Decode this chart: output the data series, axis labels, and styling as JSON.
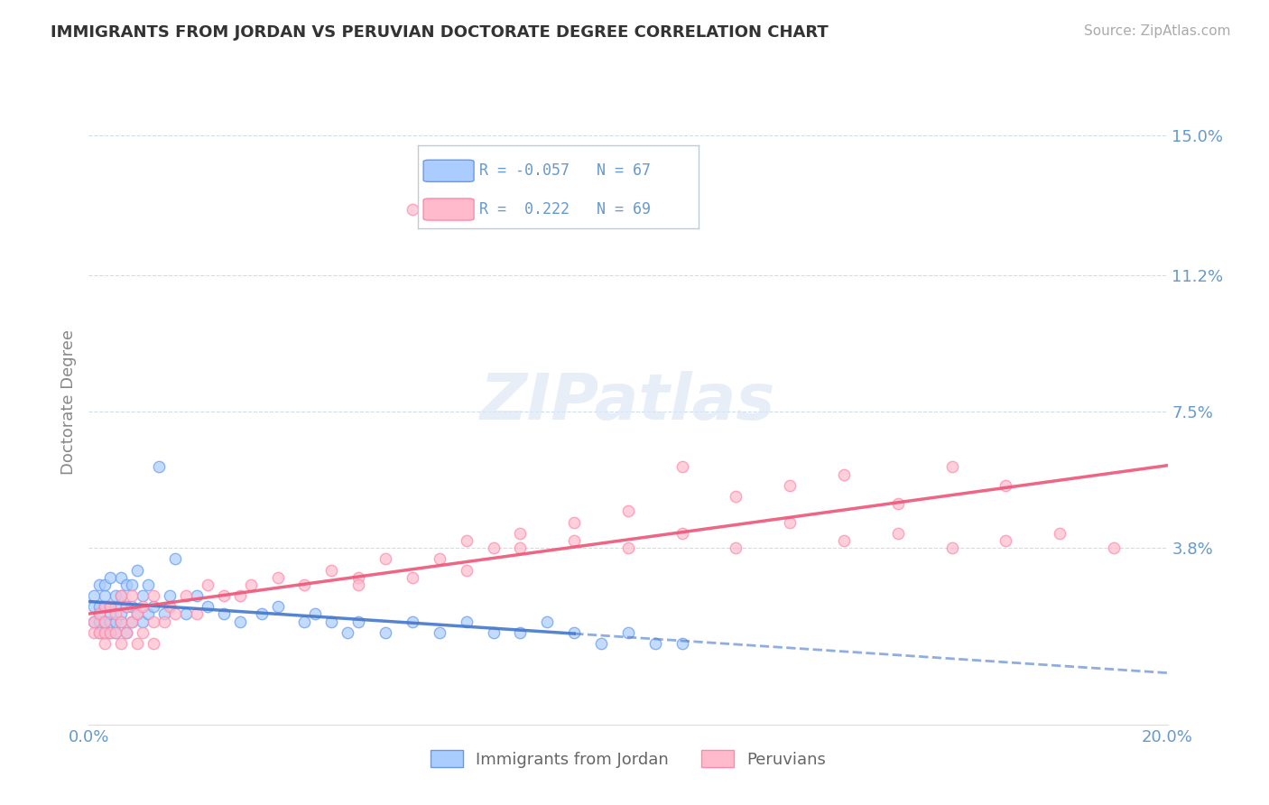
{
  "title": "IMMIGRANTS FROM JORDAN VS PERUVIAN DOCTORATE DEGREE CORRELATION CHART",
  "source_text": "Source: ZipAtlas.com",
  "ylabel": "Doctorate Degree",
  "legend_labels": [
    "Immigrants from Jordan",
    "Peruvians"
  ],
  "legend_R": [
    -0.057,
    0.222
  ],
  "legend_N": [
    67,
    69
  ],
  "blue_fill": "#aaccff",
  "blue_edge": "#6699ee",
  "pink_fill": "#ffbbcc",
  "pink_edge": "#ff88aa",
  "blue_line_color": "#4477cc",
  "pink_line_color": "#ee5577",
  "title_color": "#333333",
  "axis_label_color": "#6699cc",
  "ytick_labels": [
    "15.0%",
    "11.2%",
    "7.5%",
    "3.8%"
  ],
  "ytick_values": [
    0.15,
    0.112,
    0.075,
    0.038
  ],
  "xtick_labels": [
    "0.0%",
    "20.0%"
  ],
  "xlim": [
    0.0,
    0.2
  ],
  "ylim": [
    -0.01,
    0.165
  ],
  "watermark": "ZIPatlas",
  "blue_scatter_x": [
    0.001,
    0.001,
    0.001,
    0.002,
    0.002,
    0.002,
    0.002,
    0.002,
    0.003,
    0.003,
    0.003,
    0.003,
    0.003,
    0.004,
    0.004,
    0.004,
    0.004,
    0.004,
    0.005,
    0.005,
    0.005,
    0.005,
    0.006,
    0.006,
    0.006,
    0.006,
    0.007,
    0.007,
    0.007,
    0.008,
    0.008,
    0.008,
    0.009,
    0.009,
    0.01,
    0.01,
    0.011,
    0.011,
    0.012,
    0.013,
    0.014,
    0.015,
    0.016,
    0.018,
    0.02,
    0.022,
    0.025,
    0.028,
    0.032,
    0.035,
    0.04,
    0.042,
    0.045,
    0.048,
    0.05,
    0.055,
    0.06,
    0.065,
    0.07,
    0.075,
    0.08,
    0.085,
    0.09,
    0.095,
    0.1,
    0.105,
    0.11
  ],
  "blue_scatter_y": [
    0.018,
    0.022,
    0.025,
    0.015,
    0.018,
    0.02,
    0.022,
    0.028,
    0.015,
    0.018,
    0.022,
    0.025,
    0.028,
    0.015,
    0.018,
    0.02,
    0.022,
    0.03,
    0.015,
    0.018,
    0.022,
    0.025,
    0.018,
    0.02,
    0.025,
    0.03,
    0.015,
    0.022,
    0.028,
    0.018,
    0.022,
    0.028,
    0.02,
    0.032,
    0.018,
    0.025,
    0.02,
    0.028,
    0.022,
    0.06,
    0.02,
    0.025,
    0.035,
    0.02,
    0.025,
    0.022,
    0.02,
    0.018,
    0.02,
    0.022,
    0.018,
    0.02,
    0.018,
    0.015,
    0.018,
    0.015,
    0.018,
    0.015,
    0.018,
    0.015,
    0.015,
    0.018,
    0.015,
    0.012,
    0.015,
    0.012,
    0.012
  ],
  "pink_scatter_x": [
    0.001,
    0.001,
    0.002,
    0.002,
    0.003,
    0.003,
    0.003,
    0.004,
    0.004,
    0.005,
    0.005,
    0.006,
    0.006,
    0.007,
    0.007,
    0.008,
    0.008,
    0.009,
    0.01,
    0.01,
    0.012,
    0.012,
    0.014,
    0.015,
    0.016,
    0.018,
    0.02,
    0.022,
    0.025,
    0.028,
    0.03,
    0.035,
    0.04,
    0.045,
    0.05,
    0.055,
    0.06,
    0.065,
    0.07,
    0.075,
    0.08,
    0.09,
    0.1,
    0.11,
    0.12,
    0.13,
    0.14,
    0.15,
    0.16,
    0.17,
    0.05,
    0.06,
    0.07,
    0.08,
    0.09,
    0.1,
    0.11,
    0.12,
    0.13,
    0.14,
    0.15,
    0.16,
    0.17,
    0.18,
    0.19,
    0.003,
    0.006,
    0.009,
    0.012
  ],
  "pink_scatter_y": [
    0.015,
    0.018,
    0.015,
    0.02,
    0.015,
    0.018,
    0.022,
    0.015,
    0.022,
    0.015,
    0.02,
    0.018,
    0.025,
    0.015,
    0.022,
    0.018,
    0.025,
    0.02,
    0.015,
    0.022,
    0.018,
    0.025,
    0.018,
    0.022,
    0.02,
    0.025,
    0.02,
    0.028,
    0.025,
    0.025,
    0.028,
    0.03,
    0.028,
    0.032,
    0.03,
    0.035,
    0.13,
    0.035,
    0.04,
    0.038,
    0.042,
    0.045,
    0.048,
    0.06,
    0.052,
    0.055,
    0.058,
    0.05,
    0.06,
    0.055,
    0.028,
    0.03,
    0.032,
    0.038,
    0.04,
    0.038,
    0.042,
    0.038,
    0.045,
    0.04,
    0.042,
    0.038,
    0.04,
    0.042,
    0.038,
    0.012,
    0.012,
    0.012,
    0.012
  ]
}
